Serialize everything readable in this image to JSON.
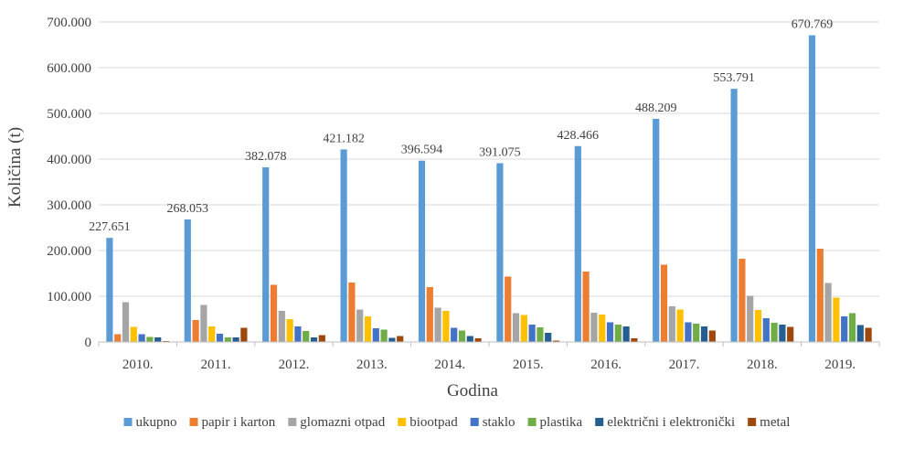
{
  "chart_data": {
    "type": "bar",
    "xlabel": "Godina",
    "ylabel": "Količina (t)",
    "ylim": [
      0,
      700000
    ],
    "yticks": [
      {
        "value": 0,
        "label": "0"
      },
      {
        "value": 100000,
        "label": "100.000"
      },
      {
        "value": 200000,
        "label": "200.000"
      },
      {
        "value": 300000,
        "label": "300.000"
      },
      {
        "value": 400000,
        "label": "400.000"
      },
      {
        "value": 500000,
        "label": "500.000"
      },
      {
        "value": 600000,
        "label": "600.000"
      },
      {
        "value": 700000,
        "label": "700.000"
      }
    ],
    "grid": true,
    "legend_position": "bottom",
    "categories": [
      "2010.",
      "2011.",
      "2012.",
      "2013.",
      "2014.",
      "2015.",
      "2016.",
      "2017.",
      "2018.",
      "2019."
    ],
    "series": [
      {
        "name": "ukupno",
        "color": "#5B9BD5",
        "values": [
          227651,
          268053,
          382078,
          421182,
          396594,
          391075,
          428466,
          488209,
          553791,
          670769
        ],
        "data_labels": [
          "227.651",
          "268.053",
          "382.078",
          "421.182",
          "396.594",
          "391.075",
          "428.466",
          "488.209",
          "553.791",
          "670.769"
        ]
      },
      {
        "name": "papir i karton",
        "color": "#ED7D31",
        "values": [
          17000,
          48000,
          125000,
          130000,
          120000,
          143000,
          154000,
          169000,
          182000,
          204000
        ]
      },
      {
        "name": "glomazni otpad",
        "color": "#A5A5A5",
        "values": [
          87000,
          81000,
          68000,
          71000,
          75000,
          63000,
          64000,
          78000,
          101000,
          129000
        ]
      },
      {
        "name": "biootpad",
        "color": "#FFC000",
        "values": [
          33000,
          34000,
          50000,
          56000,
          68000,
          59000,
          60000,
          71000,
          70000,
          97000
        ]
      },
      {
        "name": "staklo",
        "color": "#4472C4",
        "values": [
          17000,
          18000,
          34000,
          30000,
          31000,
          38000,
          43000,
          43000,
          52000,
          56000
        ]
      },
      {
        "name": "plastika",
        "color": "#70AD47",
        "values": [
          11000,
          10000,
          24000,
          27000,
          25000,
          32000,
          38000,
          40000,
          42000,
          63000
        ]
      },
      {
        "name": "električni i elektronički",
        "color": "#255E91",
        "values": [
          10000,
          10000,
          10000,
          9000,
          13000,
          20000,
          34000,
          34000,
          38000,
          37000
        ]
      },
      {
        "name": "metal",
        "color": "#9E480E",
        "values": [
          2000,
          31000,
          15000,
          13000,
          8000,
          3000,
          8000,
          25000,
          33000,
          31000
        ]
      }
    ]
  }
}
